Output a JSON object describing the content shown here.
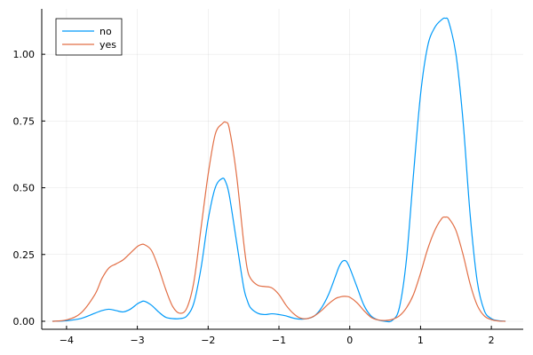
{
  "chart_data": {
    "type": "line",
    "title": "",
    "xlabel": "",
    "ylabel": "",
    "xlim": [
      -4.35,
      2.45
    ],
    "ylim": [
      -0.03,
      1.17
    ],
    "xticks": [
      -4,
      -3,
      -2,
      -1,
      0,
      1,
      2
    ],
    "xtick_labels": [
      "−4",
      "−3",
      "−2",
      "−1",
      "0",
      "1",
      "2"
    ],
    "yticks": [
      0.0,
      0.25,
      0.5,
      0.75,
      1.0
    ],
    "ytick_labels": [
      "0.00",
      "0.25",
      "0.50",
      "0.75",
      "1.00"
    ],
    "grid": true,
    "legend_position": "top-left",
    "series": [
      {
        "name": "no",
        "color": "#009af9",
        "x": [
          -4.2,
          -4.0,
          -3.8,
          -3.6,
          -3.5,
          -3.4,
          -3.3,
          -3.2,
          -3.1,
          -3.0,
          -2.95,
          -2.9,
          -2.8,
          -2.7,
          -2.6,
          -2.5,
          -2.4,
          -2.3,
          -2.2,
          -2.1,
          -2.0,
          -1.9,
          -1.8,
          -1.75,
          -1.7,
          -1.6,
          -1.5,
          -1.45,
          -1.4,
          -1.3,
          -1.2,
          -1.1,
          -1.0,
          -0.9,
          -0.8,
          -0.7,
          -0.6,
          -0.5,
          -0.4,
          -0.3,
          -0.2,
          -0.15,
          -0.1,
          -0.05,
          0.0,
          0.1,
          0.2,
          0.3,
          0.4,
          0.5,
          0.6,
          0.7,
          0.8,
          0.9,
          1.0,
          1.1,
          1.2,
          1.3,
          1.35,
          1.4,
          1.5,
          1.6,
          1.7,
          1.8,
          1.9,
          2.0,
          2.1,
          2.2
        ],
        "y": [
          0.0,
          0.002,
          0.01,
          0.03,
          0.04,
          0.045,
          0.04,
          0.035,
          0.045,
          0.065,
          0.072,
          0.075,
          0.06,
          0.035,
          0.015,
          0.01,
          0.01,
          0.02,
          0.07,
          0.2,
          0.38,
          0.5,
          0.535,
          0.52,
          0.47,
          0.3,
          0.13,
          0.08,
          0.05,
          0.03,
          0.025,
          0.028,
          0.025,
          0.02,
          0.012,
          0.008,
          0.01,
          0.02,
          0.05,
          0.1,
          0.17,
          0.205,
          0.225,
          0.225,
          0.2,
          0.13,
          0.06,
          0.02,
          0.005,
          0.0,
          0.003,
          0.05,
          0.23,
          0.55,
          0.85,
          1.03,
          1.1,
          1.13,
          1.135,
          1.12,
          1.0,
          0.75,
          0.4,
          0.15,
          0.04,
          0.01,
          0.002,
          0.0
        ]
      },
      {
        "name": "yes",
        "color": "#e26f46",
        "x": [
          -4.2,
          -4.0,
          -3.8,
          -3.6,
          -3.5,
          -3.4,
          -3.3,
          -3.2,
          -3.1,
          -3.0,
          -2.95,
          -2.9,
          -2.8,
          -2.7,
          -2.6,
          -2.5,
          -2.4,
          -2.3,
          -2.2,
          -2.1,
          -2.0,
          -1.9,
          -1.8,
          -1.75,
          -1.7,
          -1.6,
          -1.5,
          -1.45,
          -1.4,
          -1.3,
          -1.2,
          -1.1,
          -1.0,
          -0.9,
          -0.8,
          -0.7,
          -0.6,
          -0.5,
          -0.4,
          -0.3,
          -0.2,
          -0.15,
          -0.1,
          -0.05,
          0.0,
          0.1,
          0.2,
          0.3,
          0.4,
          0.5,
          0.6,
          0.7,
          0.8,
          0.9,
          1.0,
          1.1,
          1.2,
          1.3,
          1.35,
          1.4,
          1.5,
          1.6,
          1.7,
          1.8,
          1.9,
          2.0,
          2.1,
          2.2
        ],
        "y": [
          0.0,
          0.005,
          0.03,
          0.1,
          0.16,
          0.2,
          0.215,
          0.23,
          0.255,
          0.28,
          0.287,
          0.287,
          0.265,
          0.2,
          0.12,
          0.055,
          0.03,
          0.05,
          0.15,
          0.35,
          0.55,
          0.7,
          0.74,
          0.745,
          0.72,
          0.55,
          0.3,
          0.2,
          0.16,
          0.135,
          0.13,
          0.125,
          0.1,
          0.06,
          0.03,
          0.012,
          0.01,
          0.02,
          0.04,
          0.065,
          0.085,
          0.09,
          0.093,
          0.093,
          0.09,
          0.07,
          0.04,
          0.015,
          0.005,
          0.003,
          0.007,
          0.02,
          0.05,
          0.1,
          0.18,
          0.27,
          0.34,
          0.385,
          0.39,
          0.385,
          0.34,
          0.25,
          0.14,
          0.06,
          0.02,
          0.006,
          0.001,
          0.0
        ]
      }
    ]
  }
}
